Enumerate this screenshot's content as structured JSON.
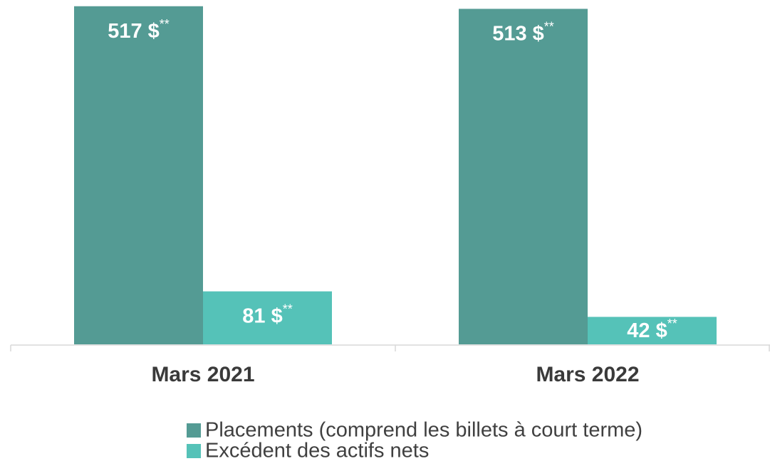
{
  "chart_data": {
    "type": "bar",
    "categories": [
      "Mars 2021",
      "Mars 2022"
    ],
    "series": [
      {
        "name": "Placements (comprend les billets à court terme)",
        "color": "#549b94",
        "values": [
          517,
          513
        ],
        "value_labels": [
          "517 $",
          "513 $"
        ]
      },
      {
        "name": "Excédent des actifs nets",
        "color": "#55c2b8",
        "values": [
          81,
          42
        ],
        "value_labels": [
          "81 $",
          "42 $"
        ]
      }
    ],
    "label_suffix": "**",
    "ylim": [
      0,
      520
    ]
  }
}
